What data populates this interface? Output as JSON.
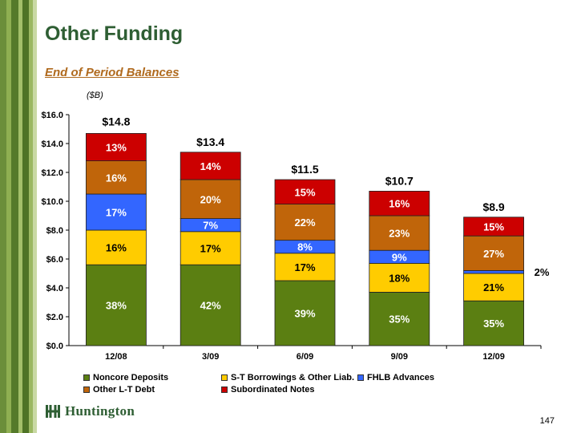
{
  "page": {
    "title": "Other Funding",
    "subtitle": "End of Period Balances",
    "unit": "($B)",
    "page_number": "147"
  },
  "brand": {
    "name": "Huntington",
    "color": "#2e5e33",
    "icon": "huntington-logo-icon"
  },
  "colors": {
    "noncore": "#5b7f12",
    "st": "#ffcc00",
    "fhlb": "#3366ff",
    "otherlt": "#c0650a",
    "sub": "#cc0000"
  },
  "chart_data": {
    "type": "bar",
    "stacked": true,
    "categories": [
      "12/08",
      "3/09",
      "6/09",
      "9/09",
      "12/09"
    ],
    "ylim": [
      0,
      16
    ],
    "yticks": [
      "$0.0",
      "$2.0",
      "$4.0",
      "$6.0",
      "$8.0",
      "$10.0",
      "$12.0",
      "$14.0",
      "$16.0"
    ],
    "totals": [
      14.8,
      13.4,
      11.5,
      10.7,
      8.9
    ],
    "total_labels": [
      "$14.8",
      "$13.4",
      "$11.5",
      "$10.7",
      "$8.9"
    ],
    "series": [
      {
        "name": "Noncore Deposits",
        "key": "noncore",
        "values": [
          5.6,
          5.6,
          4.5,
          3.7,
          3.1
        ],
        "labels": [
          "38%",
          "42%",
          "39%",
          "35%",
          "35%"
        ]
      },
      {
        "name": "S-T Borrowings & Other Liab.",
        "key": "st",
        "values": [
          2.4,
          2.3,
          1.9,
          2.0,
          1.9
        ],
        "labels": [
          "16%",
          "17%",
          "17%",
          "18%",
          "21%"
        ]
      },
      {
        "name": "FHLB Advances",
        "key": "fhlb",
        "values": [
          2.5,
          0.9,
          0.9,
          0.9,
          0.2
        ],
        "labels": [
          "17%",
          "7%",
          "8%",
          "9%",
          "2%"
        ]
      },
      {
        "name": "Other L-T Debt",
        "key": "otherlt",
        "values": [
          2.3,
          2.7,
          2.5,
          2.4,
          2.4
        ],
        "labels": [
          "16%",
          "20%",
          "22%",
          "23%",
          "27%"
        ]
      },
      {
        "name": "Subordinated Notes",
        "key": "sub",
        "values": [
          1.9,
          1.9,
          1.7,
          1.7,
          1.3
        ],
        "labels": [
          "13%",
          "14%",
          "15%",
          "16%",
          "15%"
        ]
      }
    ],
    "legend_position": "bottom",
    "grid": false
  }
}
